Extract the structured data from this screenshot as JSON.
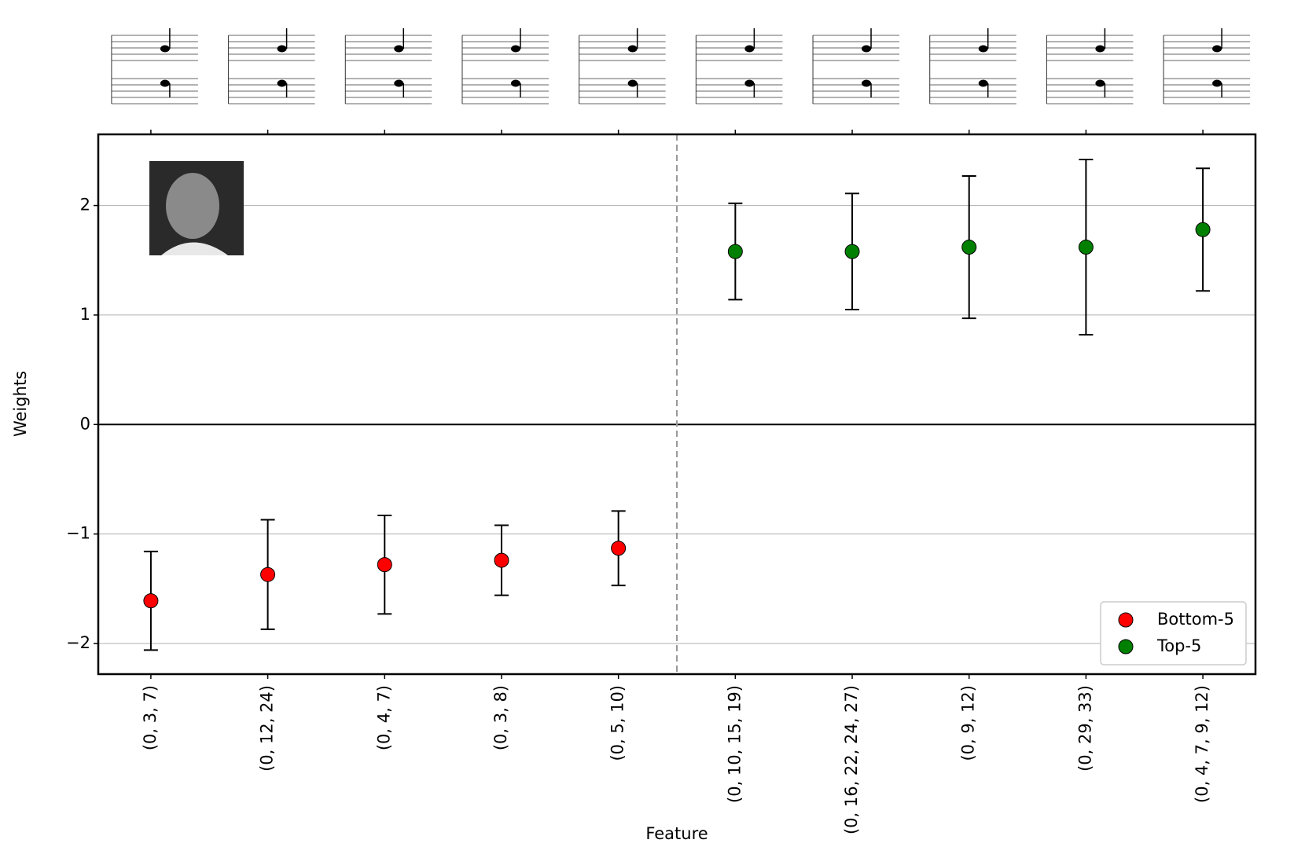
{
  "chart_data": {
    "type": "errorbar",
    "x_label": "Feature",
    "y_label": "Weights",
    "categories": [
      "(0, 3, 7)",
      "(0, 12, 24)",
      "(0, 4, 7)",
      "(0, 3, 8)",
      "(0, 5, 10)",
      "(0, 10, 15, 19)",
      "(0, 16, 22, 24, 27)",
      "(0, 9, 12)",
      "(0, 29, 33)",
      "(0, 4, 7, 9, 12)"
    ],
    "series": [
      {
        "name": "Bottom-5",
        "color": "#ff0000",
        "values": [
          -1.61,
          -1.37,
          -1.28,
          -1.24,
          -1.13,
          null,
          null,
          null,
          null,
          null
        ],
        "errors": [
          0.45,
          0.5,
          0.45,
          0.32,
          0.34,
          null,
          null,
          null,
          null,
          null
        ]
      },
      {
        "name": "Top-5",
        "color": "#008000",
        "values": [
          null,
          null,
          null,
          null,
          null,
          1.58,
          1.58,
          1.62,
          1.62,
          1.78
        ],
        "errors": [
          null,
          null,
          null,
          null,
          null,
          0.44,
          0.53,
          0.65,
          0.8,
          0.56
        ]
      }
    ],
    "ylim": [
      -2.28,
      2.65
    ],
    "yticks": [
      {
        "value": -2,
        "label": "−2"
      },
      {
        "value": -1,
        "label": "−1"
      },
      0,
      1,
      2
    ],
    "grid": true,
    "legend": "lower right"
  }
}
